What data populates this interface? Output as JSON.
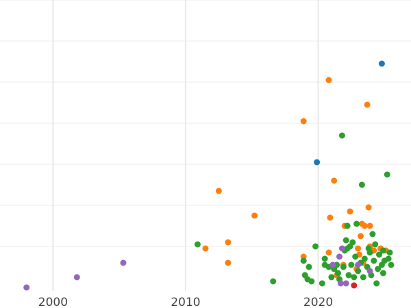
{
  "chart_data": {
    "type": "scatter",
    "title": "",
    "xlabel": "",
    "ylabel": "",
    "xlim": [
      1996,
      2027
    ],
    "ylim": [
      0,
      7
    ],
    "grid": true,
    "legend": "none",
    "x_ticks": [
      2000,
      2010,
      2020
    ],
    "x_tick_labels": [
      "2000",
      "2010",
      "2020"
    ],
    "y_gridlines": [
      1,
      2,
      3,
      4,
      5,
      6,
      7
    ],
    "series": [
      {
        "color": "#1f77b4",
        "points": [
          [
            2019.9,
            3.05
          ],
          [
            2024.8,
            5.45
          ]
        ]
      },
      {
        "color": "#ff7f0e",
        "points": [
          [
            2011.5,
            0.95
          ],
          [
            2012.5,
            2.35
          ],
          [
            2013.2,
            1.1
          ],
          [
            2013.2,
            0.6
          ],
          [
            2015.2,
            1.75
          ],
          [
            2018.9,
            4.05
          ],
          [
            2018.9,
            0.75
          ],
          [
            2020.8,
            5.05
          ],
          [
            2020.9,
            1.7
          ],
          [
            2020.8,
            0.85
          ],
          [
            2021.2,
            2.6
          ],
          [
            2021.4,
            0.3
          ],
          [
            2021.9,
            0.55
          ],
          [
            2022.0,
            1.5
          ],
          [
            2022.4,
            1.85
          ],
          [
            2022.9,
            0.45
          ],
          [
            2023.0,
            0.95
          ],
          [
            2023.1,
            0.8
          ],
          [
            2023.2,
            1.25
          ],
          [
            2023.3,
            1.55
          ],
          [
            2023.5,
            1.5
          ],
          [
            2023.7,
            4.45
          ],
          [
            2023.8,
            1.95
          ],
          [
            2023.9,
            1.5
          ],
          [
            2023.9,
            1.0
          ],
          [
            2024.2,
            0.9
          ],
          [
            2024.7,
            0.95
          ],
          [
            2025.1,
            0.9
          ],
          [
            2023.4,
            0.6
          ]
        ]
      },
      {
        "color": "#2ca02c",
        "points": [
          [
            2010.9,
            1.05
          ],
          [
            2016.6,
            0.15
          ],
          [
            2018.9,
            0.65
          ],
          [
            2019.0,
            0.3
          ],
          [
            2019.2,
            0.2
          ],
          [
            2019.3,
            0.5
          ],
          [
            2019.5,
            0.15
          ],
          [
            2019.8,
            1.0
          ],
          [
            2020.3,
            0.1
          ],
          [
            2020.5,
            0.55
          ],
          [
            2020.5,
            0.7
          ],
          [
            2020.8,
            0.5
          ],
          [
            2021.0,
            0.25
          ],
          [
            2021.2,
            0.45
          ],
          [
            2021.4,
            0.55
          ],
          [
            2021.5,
            0.35
          ],
          [
            2021.6,
            0.2
          ],
          [
            2021.8,
            3.7
          ],
          [
            2021.9,
            0.5
          ],
          [
            2022.0,
            0.9
          ],
          [
            2022.1,
            1.15
          ],
          [
            2022.2,
            1.5
          ],
          [
            2022.2,
            0.95
          ],
          [
            2022.3,
            0.3
          ],
          [
            2022.4,
            1.0
          ],
          [
            2022.5,
            0.55
          ],
          [
            2022.6,
            1.1
          ],
          [
            2022.7,
            0.25
          ],
          [
            2022.9,
            1.55
          ],
          [
            2023.0,
            0.4
          ],
          [
            2023.2,
            0.6
          ],
          [
            2023.3,
            2.5
          ],
          [
            2023.4,
            0.25
          ],
          [
            2023.5,
            0.7
          ],
          [
            2023.7,
            0.5
          ],
          [
            2023.9,
            0.85
          ],
          [
            2024.0,
            0.3
          ],
          [
            2024.1,
            1.3
          ],
          [
            2024.2,
            0.65
          ],
          [
            2024.3,
            1.05
          ],
          [
            2024.4,
            0.1
          ],
          [
            2024.5,
            0.45
          ],
          [
            2024.6,
            0.8
          ],
          [
            2024.8,
            0.55
          ],
          [
            2024.9,
            0.9
          ],
          [
            2025.0,
            0.65
          ],
          [
            2025.2,
            2.75
          ],
          [
            2025.3,
            0.7
          ],
          [
            2025.4,
            0.85
          ],
          [
            2025.5,
            0.55
          ],
          [
            2024.9,
            0.35
          ],
          [
            2023.8,
            0.95
          ],
          [
            2022.8,
            0.75
          ]
        ]
      },
      {
        "color": "#d62728",
        "points": [
          [
            2022.7,
            0.05
          ]
        ]
      },
      {
        "color": "#9467bd",
        "points": [
          [
            1998.0,
            0.0
          ],
          [
            2001.8,
            0.25
          ],
          [
            2005.3,
            0.6
          ],
          [
            2021.1,
            0.55
          ],
          [
            2021.6,
            0.75
          ],
          [
            2021.7,
            0.1
          ],
          [
            2021.8,
            0.95
          ],
          [
            2022.1,
            0.1
          ],
          [
            2023.0,
            0.55
          ],
          [
            2023.9,
            0.4
          ]
        ]
      }
    ]
  }
}
